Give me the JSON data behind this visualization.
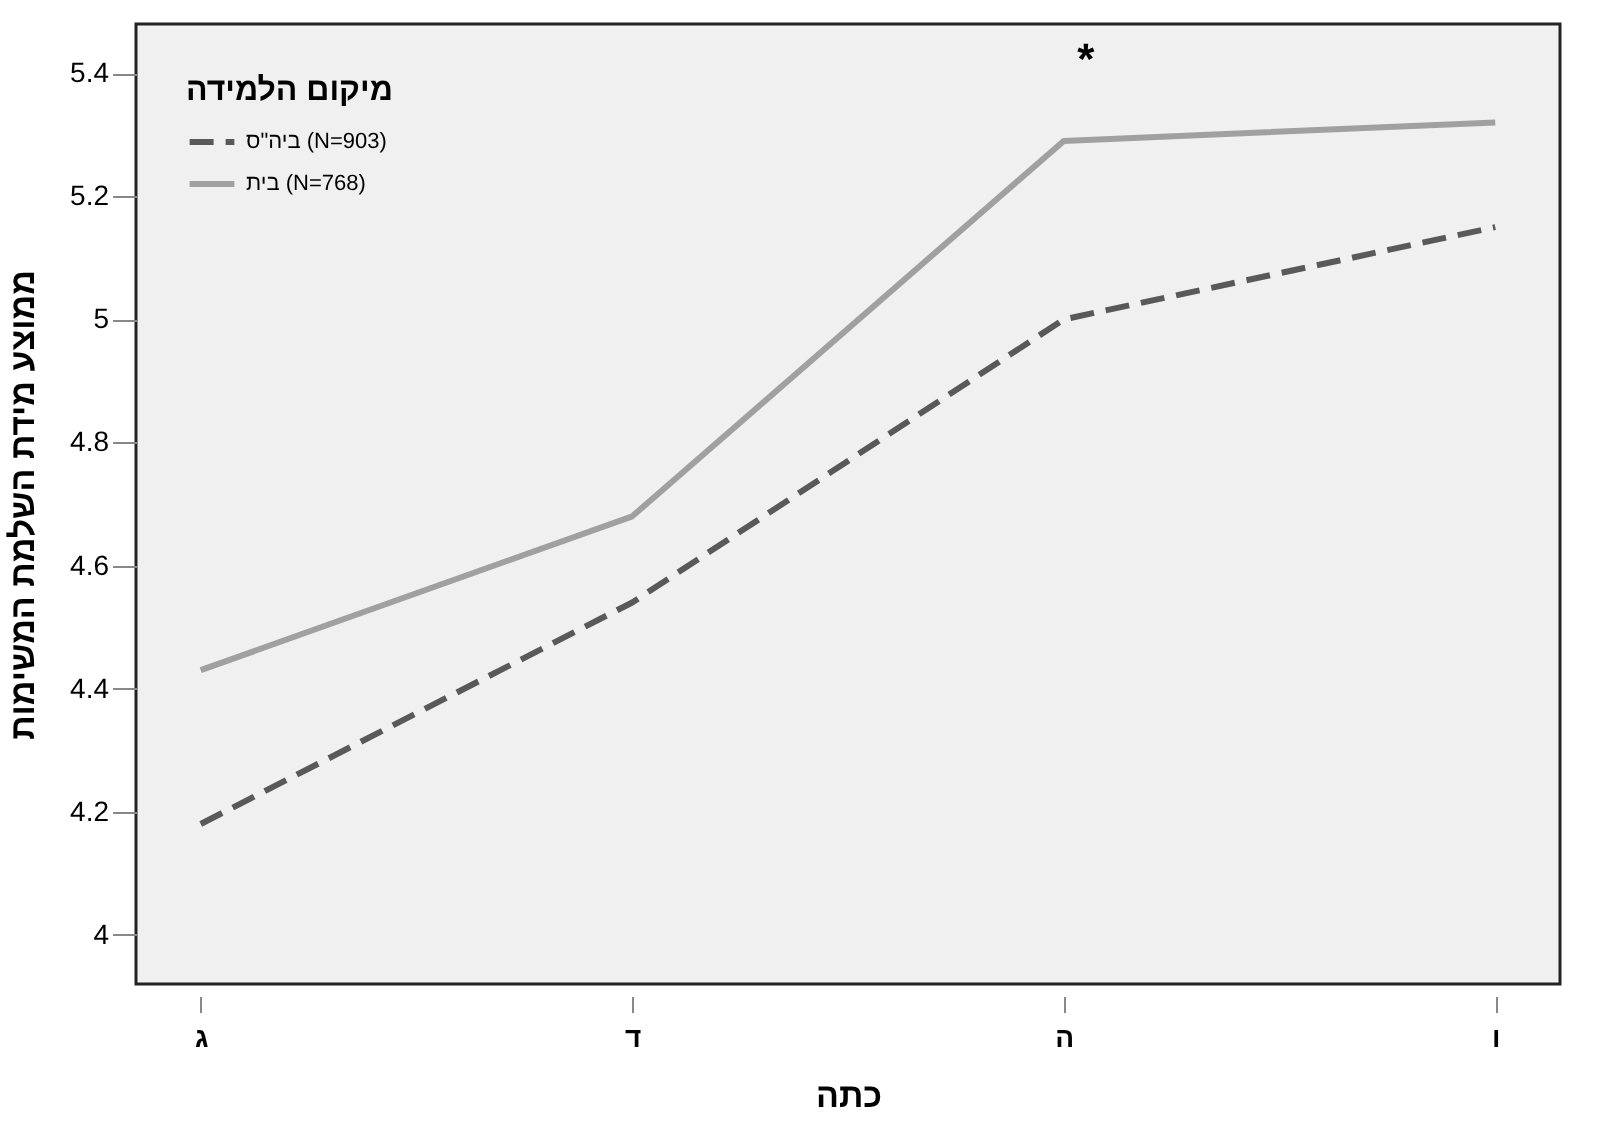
{
  "chart_data": {
    "type": "line",
    "xlabel": "כתה",
    "ylabel": "ממוצע מידת השלמת המשימות",
    "legend_title": "מיקום הלמידה",
    "categories": [
      "ג",
      "ד",
      "ה",
      "ו"
    ],
    "series": [
      {
        "name": "ביה\"ס (N=903)",
        "color": "#595959",
        "line_style": "dashed",
        "values": [
          4.18,
          4.54,
          5.0,
          5.15
        ]
      },
      {
        "name": "בית (N=768)",
        "color": "#a0a0a0",
        "line_style": "solid",
        "values": [
          4.43,
          4.68,
          5.29,
          5.32
        ]
      }
    ],
    "annotations": [
      "*"
    ],
    "ylim": [
      3.92,
      5.48
    ],
    "yticks": [
      4,
      4.2,
      4.4,
      4.6,
      4.8,
      5,
      5.2,
      5.4
    ],
    "grid": false,
    "legend": "top left",
    "marker": "none"
  }
}
